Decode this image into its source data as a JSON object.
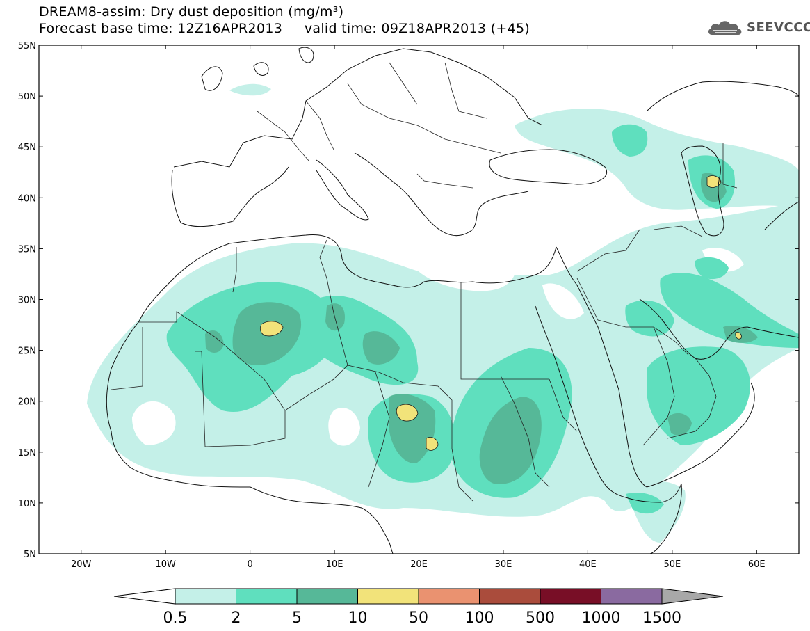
{
  "title": {
    "line1": "DREAM8-assim: Dry dust deposition (mg/m³)",
    "base_time": "Forecast base time: 12Z16APR2013",
    "valid_time": "valid time: 09Z18APR2013 (+45)"
  },
  "logo": {
    "text": "SEEVCCC",
    "icon": "cloud-icon"
  },
  "map": {
    "lon_range": [
      -25,
      65
    ],
    "lat_range": [
      5,
      55
    ],
    "lat_labels": [
      "55N",
      "50N",
      "45N",
      "40N",
      "35N",
      "30N",
      "25N",
      "20N",
      "15N",
      "10N",
      "5N"
    ],
    "lon_labels": [
      "20W",
      "10W",
      "0",
      "10E",
      "20E",
      "30E",
      "40E",
      "50E",
      "60E"
    ]
  },
  "colorbar": {
    "labels": [
      "0.5",
      "2",
      "5",
      "10",
      "50",
      "100",
      "500",
      "1000",
      "1500"
    ],
    "colors": [
      "#c4f0e8",
      "#5fdfbe",
      "#56b898",
      "#f2e37a",
      "#ea9270",
      "#aa4c3c",
      "#780e26",
      "#8a6aa0"
    ],
    "under_color": "#ffffff",
    "over_color": "#a8a8a8"
  }
}
